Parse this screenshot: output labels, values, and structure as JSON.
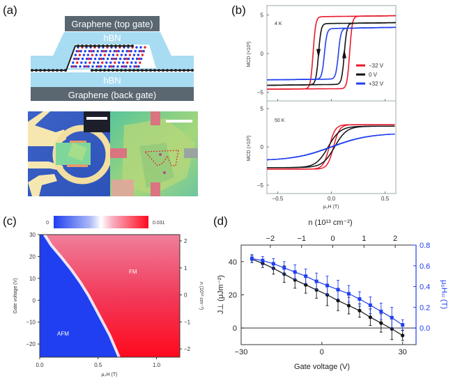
{
  "panels": {
    "a": {
      "label": "(a)",
      "top_gate": "Graphene (top gate)",
      "hbn_top": "hBN",
      "hbn_bottom": "hBN",
      "back_gate": "Graphene (back gate)"
    },
    "b": {
      "label": "(b)"
    },
    "c": {
      "label": "(c)"
    },
    "d": {
      "label": "(d)"
    }
  },
  "colors": {
    "red": "#e8192c",
    "black": "#111111",
    "blue": "#1f3ff0",
    "hbn": "#a8dcf2",
    "graphene_box": "#5a6670"
  },
  "chart_data": [
    {
      "id": "b-top",
      "type": "line",
      "annotation": "4 K",
      "ylabel": "MCD (×10³)",
      "xlim": [
        -0.6,
        0.6
      ],
      "ylim": [
        -6,
        6
      ],
      "xticks": [
        -0.5,
        0.0,
        0.5
      ],
      "yticks": [
        {
          "v": 5,
          "label": "5"
        },
        {
          "v": 0,
          "label": "0"
        },
        {
          "v": -5,
          "label": "−5"
        }
      ],
      "legend": [
        {
          "name": "−32 V",
          "color": "#e8192c"
        },
        {
          "name": "0 V",
          "color": "#111111"
        },
        {
          "name": "+32 V",
          "color": "#1f3ff0"
        }
      ],
      "series": [
        {
          "name": "−32 V",
          "color": "#e8192c",
          "sat_hi": 4.7,
          "sat_lo": -4.6,
          "coercive": 0.17,
          "hi_end": 4.9,
          "lo_end": -4.5
        },
        {
          "name": "0 V",
          "color": "#111111",
          "sat_hi": 3.8,
          "sat_lo": -4.1,
          "coercive": 0.12,
          "hi_end": 4.0,
          "lo_end": -3.9
        },
        {
          "name": "+32 V",
          "color": "#1f3ff0",
          "sat_hi": 3.1,
          "sat_lo": -3.4,
          "coercive": 0.065,
          "hi_end": 3.4,
          "lo_end": -3.2
        }
      ]
    },
    {
      "id": "b-bottom",
      "type": "line",
      "annotation": "50 K",
      "ylabel": "MCD (×10³)",
      "xlabel": "μ₀H (T)",
      "xlim": [
        -0.6,
        0.6
      ],
      "ylim": [
        -6,
        6
      ],
      "xticks": [
        {
          "v": -0.5,
          "label": "−0.5"
        },
        {
          "v": 0.0,
          "label": "0.0"
        },
        {
          "v": 0.5,
          "label": "0.5"
        }
      ],
      "yticks": [
        {
          "v": 5,
          "label": "5"
        },
        {
          "v": 0,
          "label": "0"
        },
        {
          "v": -5,
          "label": "−5"
        }
      ],
      "series": [
        {
          "name": "−32 V",
          "color": "#e8192c",
          "sat": 2.9,
          "width": 0.035,
          "shift": 0.02
        },
        {
          "name": "0 V",
          "color": "#111111",
          "sat": 2.7,
          "width": 0.07,
          "shift": 0.03
        },
        {
          "name": "+32 V",
          "color": "#1f3ff0",
          "sat": 1.8,
          "width": 0.22,
          "shift": 0.005
        }
      ]
    },
    {
      "id": "c",
      "type": "heatmap",
      "colorbar": {
        "min_label": "0",
        "max_label": "0.031",
        "min_color": "#1f3ff0",
        "mid_color": "#ffffff",
        "max_color": "#ff0a1e"
      },
      "xlabel": "μ₀H (T)",
      "ylabel": "Gate voltage (V)",
      "ylabel_right": "n (10¹³ cm⁻²)",
      "xlim": [
        0.0,
        1.2
      ],
      "ylim": [
        -26,
        30
      ],
      "xticks": [
        {
          "v": 0.0,
          "label": "0.0"
        },
        {
          "v": 0.5,
          "label": "0.5"
        },
        {
          "v": 1.0,
          "label": "1.0"
        }
      ],
      "yticks": [
        {
          "v": 30,
          "label": "30"
        },
        {
          "v": 20,
          "label": "20"
        },
        {
          "v": 10,
          "label": "10"
        },
        {
          "v": 0,
          "label": "0"
        },
        {
          "v": -10,
          "label": "−10"
        },
        {
          "v": -20,
          "label": "−20"
        }
      ],
      "yticks_right": [
        {
          "v": 2,
          "label": "2"
        },
        {
          "v": 1,
          "label": "1"
        },
        {
          "v": 0,
          "label": "0"
        },
        {
          "v": -1,
          "label": "−1"
        },
        {
          "v": -2,
          "label": "−2"
        }
      ],
      "region_labels": [
        {
          "text": "AFM"
        },
        {
          "text": "FM"
        }
      ],
      "boundary": [
        [
          0.04,
          30
        ],
        [
          0.1,
          25
        ],
        [
          0.18,
          20
        ],
        [
          0.27,
          14
        ],
        [
          0.35,
          8
        ],
        [
          0.42,
          2
        ],
        [
          0.48,
          -4
        ],
        [
          0.54,
          -10
        ],
        [
          0.6,
          -16
        ],
        [
          0.64,
          -21
        ],
        [
          0.68,
          -26
        ]
      ]
    },
    {
      "id": "d",
      "type": "line",
      "xlabel": "Gate voltage (V)",
      "xlabel_top": "n (10¹³ cm⁻²)",
      "ylabel": "J⊥ (μJm⁻²)",
      "ylabel_right": "μ₀Hₛₗ (T)",
      "xlim": [
        -30,
        35
      ],
      "ylim": [
        -10,
        50
      ],
      "ylim_right": [
        -0.16,
        0.8
      ],
      "xticks": [
        {
          "v": -30,
          "label": "−30"
        },
        {
          "v": 0,
          "label": "0"
        },
        {
          "v": 30,
          "label": "30"
        }
      ],
      "xticks_top": [
        {
          "v": -2,
          "label": "−2"
        },
        {
          "v": -1,
          "label": "−1"
        },
        {
          "v": 0,
          "label": "0"
        },
        {
          "v": 1,
          "label": "1"
        },
        {
          "v": 2,
          "label": "2"
        }
      ],
      "yticks": [
        {
          "v": 40,
          "label": "40"
        },
        {
          "v": 20,
          "label": "20"
        },
        {
          "v": 0,
          "label": "0"
        }
      ],
      "yticks_right": [
        {
          "v": 0.8,
          "label": "0.8"
        },
        {
          "v": 0.6,
          "label": "0.6"
        },
        {
          "v": 0.4,
          "label": "0.4"
        },
        {
          "v": 0.2,
          "label": "0.2"
        },
        {
          "v": 0.0,
          "label": "0.0"
        }
      ],
      "x": [
        -26,
        -22,
        -18,
        -14,
        -10,
        -6,
        -2,
        2,
        6,
        10,
        14,
        18,
        22,
        26,
        30
      ],
      "series": [
        {
          "name": "J⊥",
          "color": "#111111",
          "axis": "left",
          "values": [
            41.5,
            39,
            36,
            32.5,
            29,
            26,
            23,
            20,
            16.5,
            13.5,
            10.5,
            6.5,
            3,
            -0.5,
            -4.5
          ],
          "errors": [
            2,
            2.5,
            3.5,
            5,
            5,
            5,
            5,
            6.5,
            6,
            5,
            4,
            5,
            5.5,
            6.5,
            3
          ]
        },
        {
          "name": "μ₀Hₛₗ",
          "color": "#1f3ff0",
          "axis": "right",
          "values": [
            0.67,
            0.65,
            0.62,
            0.58,
            0.54,
            0.5,
            0.45,
            0.41,
            0.37,
            0.33,
            0.28,
            0.22,
            0.16,
            0.1,
            0.03
          ],
          "errors": [
            0.04,
            0.04,
            0.05,
            0.06,
            0.07,
            0.07,
            0.08,
            0.09,
            0.09,
            0.08,
            0.07,
            0.08,
            0.08,
            0.1,
            0.05
          ]
        }
      ],
      "hline": 0
    }
  ]
}
